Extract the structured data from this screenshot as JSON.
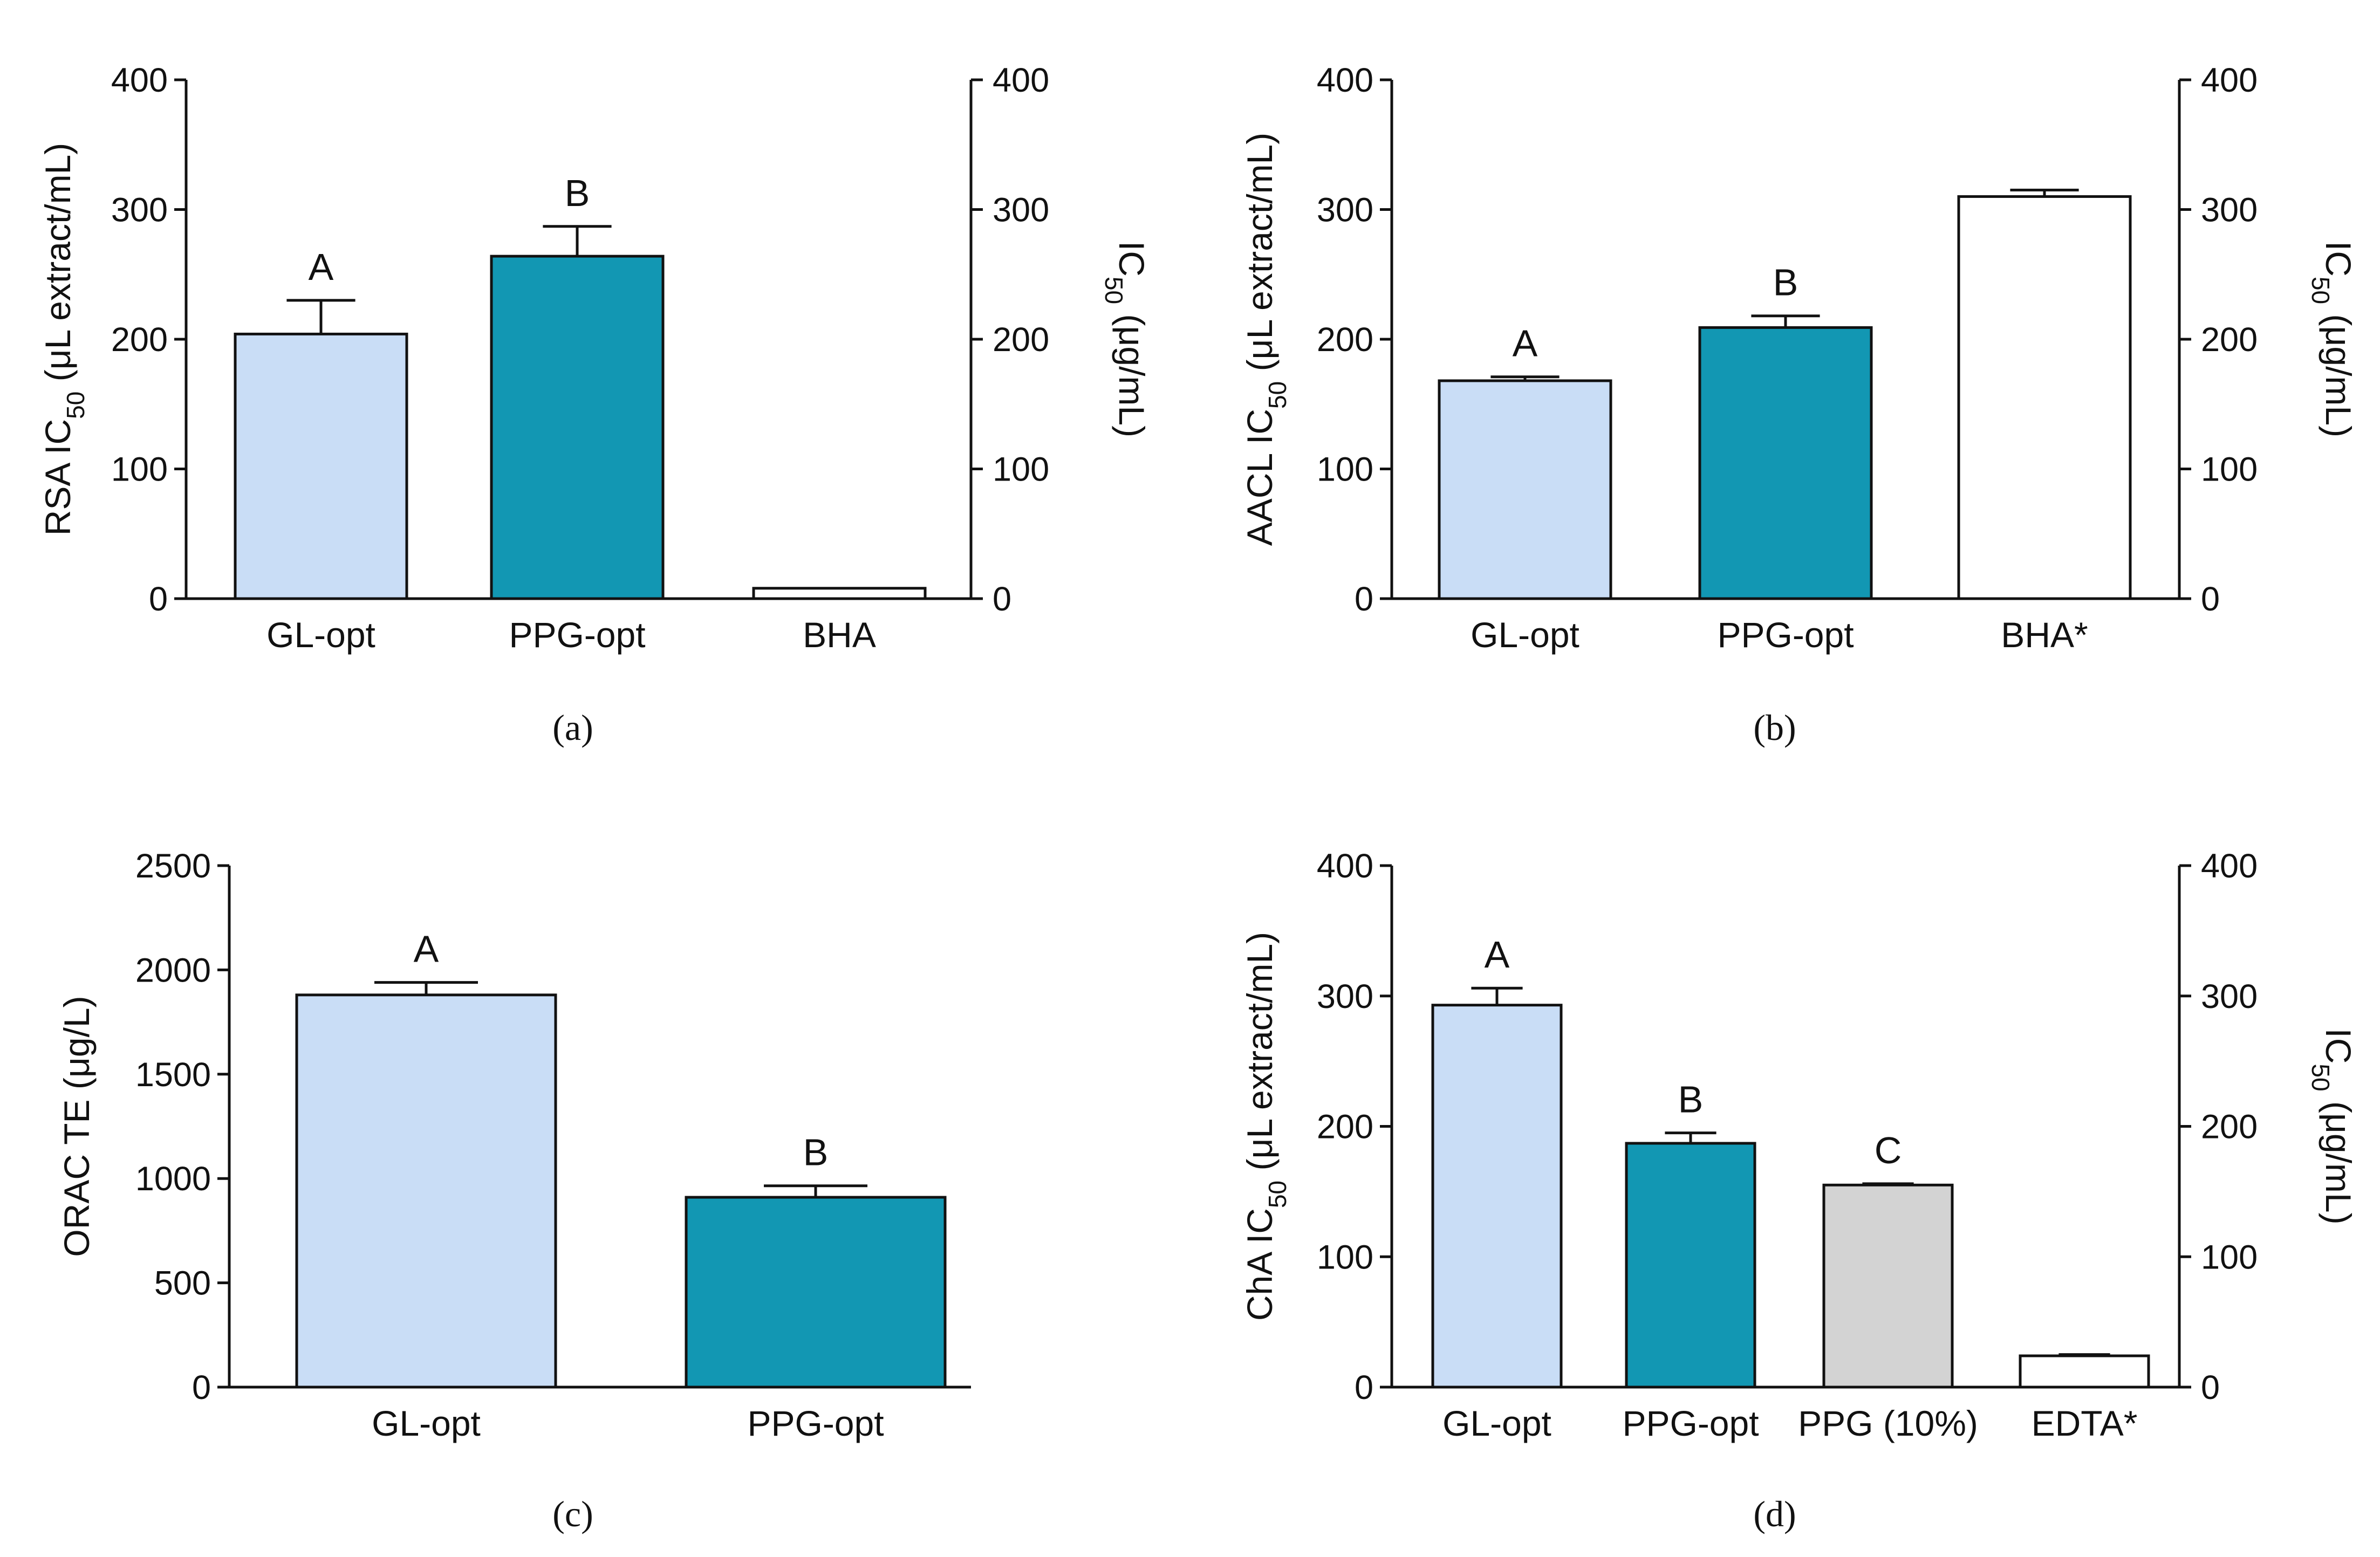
{
  "chart_data": [
    {
      "type": "bar",
      "panel": "(a)",
      "caption": "(a)",
      "categories": [
        "GL-opt",
        "PPG-opt",
        "BHA"
      ],
      "values": [
        204,
        264,
        8
      ],
      "errors": [
        26,
        23,
        0
      ],
      "significance": [
        "A",
        "B",
        ""
      ],
      "colors": [
        "#c9ddf6",
        "#1297b3",
        "#ffffff"
      ],
      "ylabel": [
        "RSA IC",
        "50",
        " (μL extract/mL)"
      ],
      "y2label": [
        "IC",
        "50",
        " (μg/mL)"
      ],
      "ylim": [
        0,
        400
      ],
      "yticks": [
        "0",
        "100",
        "200",
        "300",
        "400"
      ],
      "y2ticks": [
        "0",
        "100",
        "200",
        "300",
        "400"
      ]
    },
    {
      "type": "bar",
      "panel": "(b)",
      "caption": "(b)",
      "categories": [
        "GL-opt",
        "PPG-opt",
        "BHA*"
      ],
      "values": [
        168,
        209,
        310
      ],
      "errors": [
        3,
        9,
        5
      ],
      "significance": [
        "A",
        "B",
        ""
      ],
      "colors": [
        "#c9ddf6",
        "#1297b3",
        "#ffffff"
      ],
      "ylabel": [
        "AACL IC",
        "50",
        " (μL extract/mL)"
      ],
      "y2label": [
        "IC",
        "50",
        " (μg/mL)"
      ],
      "ylim": [
        0,
        400
      ],
      "yticks": [
        "0",
        "100",
        "200",
        "300",
        "400"
      ],
      "y2ticks": [
        "0",
        "100",
        "200",
        "300",
        "400"
      ]
    },
    {
      "type": "bar",
      "panel": "(c)",
      "caption": "(c)",
      "categories": [
        "GL-opt",
        "PPG-opt"
      ],
      "values": [
        1880,
        910
      ],
      "errors": [
        60,
        55
      ],
      "significance": [
        "A",
        "B"
      ],
      "colors": [
        "#c9ddf6",
        "#1297b3"
      ],
      "ylabel": [
        "ORAC TE (μg/L)"
      ],
      "ylim": [
        0,
        2500
      ],
      "yticks": [
        "0",
        "500",
        "1000",
        "1500",
        "2000",
        "2500"
      ]
    },
    {
      "type": "bar",
      "panel": "(d)",
      "caption": "(d)",
      "categories": [
        "GL-opt",
        "PPG-opt",
        "PPG (10%)",
        "EDTA*"
      ],
      "values": [
        293,
        187,
        155,
        24
      ],
      "errors": [
        13,
        8,
        1,
        1
      ],
      "significance": [
        "A",
        "B",
        "C",
        ""
      ],
      "colors": [
        "#c9ddf6",
        "#1297b3",
        "#d3d3d3",
        "#ffffff"
      ],
      "ylabel": [
        "ChA IC",
        "50",
        " (μL extract/mL)"
      ],
      "y2label": [
        "IC",
        "50",
        " (μg/mL)"
      ],
      "ylim": [
        0,
        400
      ],
      "yticks": [
        "0",
        "100",
        "200",
        "300",
        "400"
      ],
      "y2ticks": [
        "0",
        "100",
        "200",
        "300",
        "400"
      ]
    }
  ]
}
